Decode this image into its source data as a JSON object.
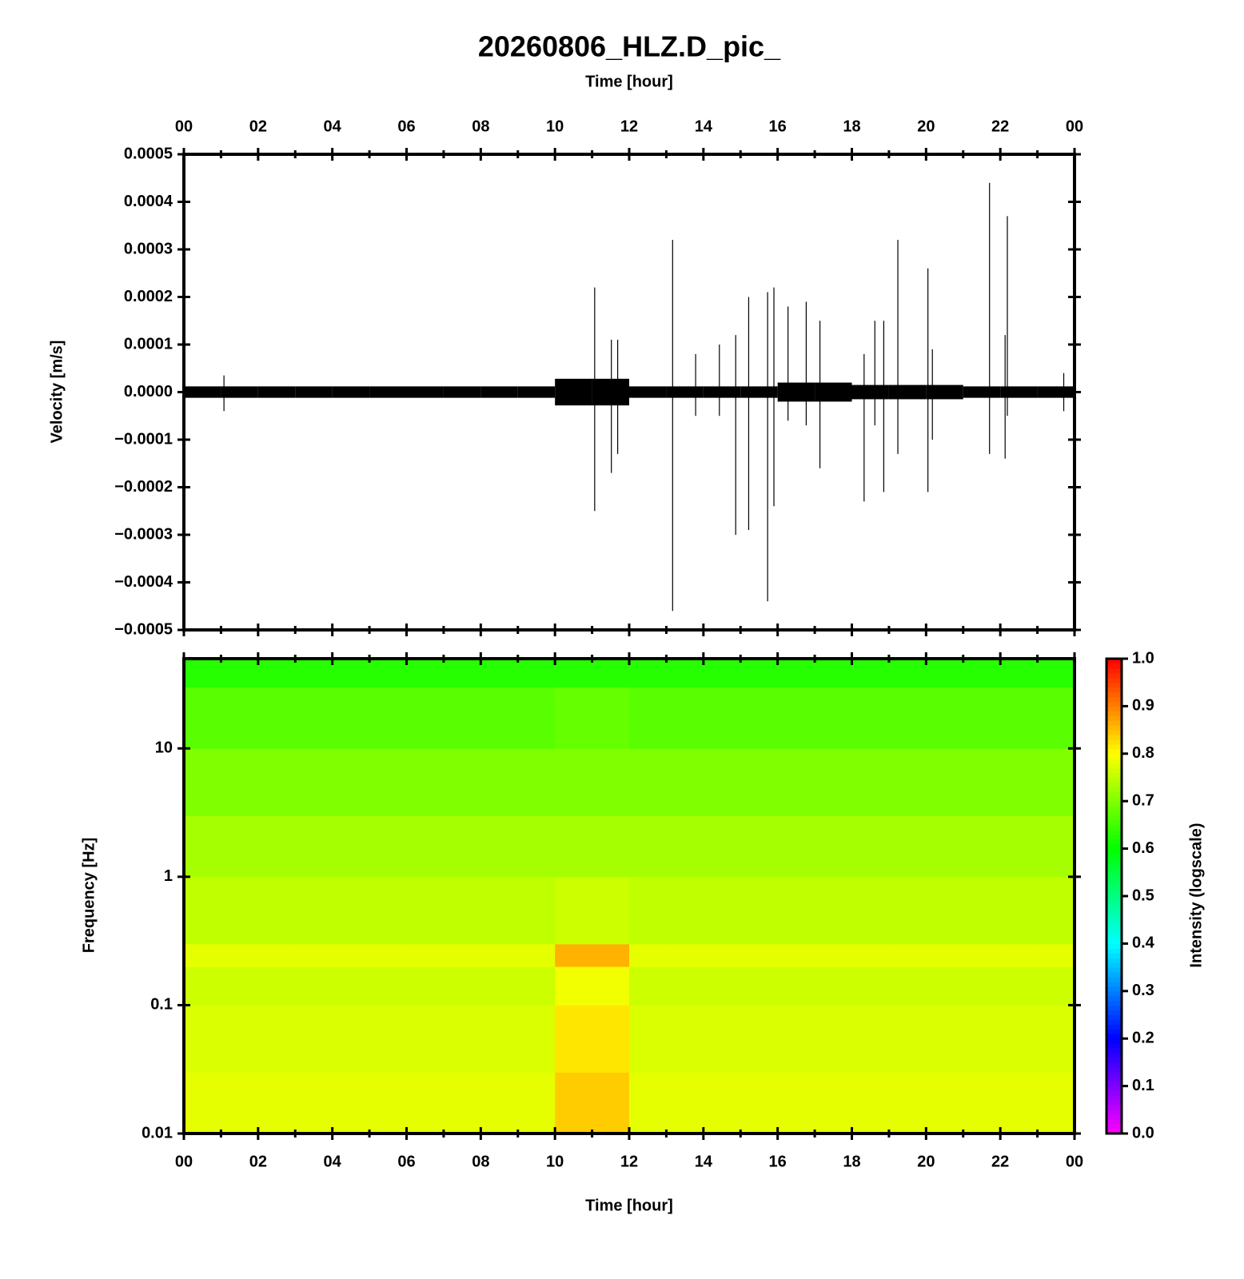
{
  "chart_data": [
    {
      "type": "spike",
      "title": "20260806_HLZ.D_pic_",
      "xlabel": "Time [hour]",
      "ylabel": "Velocity [m/s]",
      "xlim": [
        0,
        24
      ],
      "xticks": [
        {
          "value": 0,
          "label": "00"
        },
        {
          "value": 2,
          "label": "02"
        },
        {
          "value": 4,
          "label": "04"
        },
        {
          "value": 6,
          "label": "06"
        },
        {
          "value": 8,
          "label": "08"
        },
        10,
        12,
        14,
        16,
        18,
        20,
        22,
        {
          "value": 24,
          "label": "00"
        }
      ],
      "xminorticks": [
        1,
        3,
        5,
        7,
        9,
        11,
        13,
        15,
        17,
        19,
        21,
        23
      ],
      "ylim": [
        -0.0005,
        0.0005
      ],
      "yticks": [
        0.0005,
        0.0004,
        0.0003,
        0.0002,
        0.0001,
        {
          "value": 0,
          "label": "0.0000"
        },
        {
          "value": -0.0001,
          "label": "−0.0001"
        },
        {
          "value": -0.0002,
          "label": "−0.0002"
        },
        {
          "value": -0.0003,
          "label": "−0.0003"
        },
        {
          "value": -0.0004,
          "label": "−0.0004"
        },
        {
          "value": -0.0005,
          "label": "−0.0005"
        }
      ],
      "color": "#000000",
      "x": [
        1.08,
        11.07,
        11.52,
        11.69,
        13.17,
        13.79,
        14.43,
        14.87,
        15.22,
        15.73,
        15.9,
        16.28,
        16.77,
        17.14,
        18.33,
        18.62,
        18.86,
        19.24,
        20.05,
        20.17,
        21.71,
        22.13,
        22.19,
        23.71
      ],
      "highs": [
        3.5e-05,
        0.00022,
        0.00011,
        0.00011,
        0.00032,
        8e-05,
        0.0001,
        0.00012,
        0.0002,
        0.00021,
        0.00022,
        0.00018,
        0.00019,
        0.00015,
        8e-05,
        0.00015,
        0.00015,
        0.00032,
        0.00026,
        9e-05,
        0.00044,
        0.00012,
        0.00037,
        4e-05
      ],
      "lows": [
        -4e-05,
        -0.00025,
        -0.00017,
        -0.00013,
        -0.00046,
        -5e-05,
        -5e-05,
        -0.0003,
        -0.00029,
        -0.00044,
        -0.00024,
        -6e-05,
        -7e-05,
        -0.00016,
        -0.00023,
        -7e-05,
        -0.00021,
        -0.00013,
        -0.00021,
        -0.0001,
        -0.00013,
        -0.00014,
        -5e-05,
        -4e-05
      ],
      "band_edges": [
        0,
        1,
        2,
        3,
        4,
        5,
        6,
        7,
        8,
        9,
        10,
        11,
        12,
        13,
        14,
        15,
        16,
        17,
        18,
        19,
        20,
        21,
        22,
        23,
        24
      ],
      "band": [
        1.2e-05,
        1.2e-05,
        1.2e-05,
        1.2e-05,
        1.2e-05,
        1.2e-05,
        1.2e-05,
        1.2e-05,
        1.2e-05,
        1.2e-05,
        2.8e-05,
        2.8e-05,
        1.2e-05,
        1.2e-05,
        1.2e-05,
        1.2e-05,
        2e-05,
        2e-05,
        1.5e-05,
        1.5e-05,
        1.5e-05,
        1.2e-05,
        1.2e-05,
        1.2e-05
      ]
    },
    {
      "type": "heatmap",
      "xlabel": "Time [hour]",
      "ylabel": "Frequency [Hz]",
      "colorbar_label": "Intensity (logscale)",
      "xlim": [
        0,
        24
      ],
      "xticks": [
        {
          "value": 0,
          "label": "00"
        },
        {
          "value": 2,
          "label": "02"
        },
        {
          "value": 4,
          "label": "04"
        },
        {
          "value": 6,
          "label": "06"
        },
        {
          "value": 8,
          "label": "08"
        },
        10,
        12,
        14,
        16,
        18,
        20,
        22,
        {
          "value": 24,
          "label": "00"
        }
      ],
      "xminorticks": [
        1,
        3,
        5,
        7,
        9,
        11,
        13,
        15,
        17,
        19,
        21,
        23
      ],
      "ylim": [
        0.01,
        50
      ],
      "ylog": true,
      "yticks": [
        0.01,
        0.1,
        1,
        10
      ],
      "clim": [
        0,
        1
      ],
      "cticks": [
        {
          "value": 0,
          "label": "0.0"
        },
        0.1,
        0.2,
        0.3,
        0.4,
        0.5,
        0.6,
        0.7,
        0.8,
        0.9,
        {
          "value": 1,
          "label": "1.0"
        }
      ],
      "x_edges": [
        0,
        1,
        2,
        3,
        4,
        5,
        6,
        7,
        8,
        9,
        10,
        11,
        12,
        13,
        14,
        15,
        16,
        17,
        18,
        19,
        20,
        21,
        22,
        23,
        24
      ],
      "y_edges": [
        0.01,
        0.03,
        0.1,
        0.2,
        0.3,
        1,
        3,
        10,
        30,
        50
      ],
      "z": [
        [
          0.78,
          0.78,
          0.78,
          0.78,
          0.78,
          0.78,
          0.78,
          0.78,
          0.78,
          0.78,
          0.84,
          0.84,
          0.78,
          0.78,
          0.78,
          0.78,
          0.78,
          0.78,
          0.78,
          0.78,
          0.78,
          0.78,
          0.78,
          0.78
        ],
        [
          0.77,
          0.77,
          0.77,
          0.77,
          0.77,
          0.77,
          0.77,
          0.77,
          0.77,
          0.77,
          0.82,
          0.82,
          0.77,
          0.77,
          0.77,
          0.77,
          0.77,
          0.77,
          0.77,
          0.77,
          0.77,
          0.77,
          0.77,
          0.77
        ],
        [
          0.76,
          0.76,
          0.76,
          0.76,
          0.76,
          0.76,
          0.76,
          0.76,
          0.76,
          0.76,
          0.79,
          0.79,
          0.76,
          0.76,
          0.76,
          0.76,
          0.76,
          0.76,
          0.76,
          0.76,
          0.76,
          0.76,
          0.76,
          0.76
        ],
        [
          0.78,
          0.78,
          0.78,
          0.78,
          0.78,
          0.78,
          0.78,
          0.78,
          0.78,
          0.78,
          0.86,
          0.86,
          0.78,
          0.78,
          0.78,
          0.78,
          0.78,
          0.78,
          0.78,
          0.78,
          0.78,
          0.78,
          0.78,
          0.78
        ],
        [
          0.75,
          0.75,
          0.75,
          0.75,
          0.75,
          0.75,
          0.75,
          0.75,
          0.75,
          0.75,
          0.76,
          0.76,
          0.75,
          0.75,
          0.75,
          0.75,
          0.75,
          0.75,
          0.75,
          0.75,
          0.75,
          0.75,
          0.75,
          0.75
        ],
        [
          0.73,
          0.73,
          0.73,
          0.73,
          0.73,
          0.73,
          0.73,
          0.73,
          0.73,
          0.73,
          0.73,
          0.73,
          0.73,
          0.73,
          0.73,
          0.73,
          0.73,
          0.73,
          0.73,
          0.73,
          0.73,
          0.73,
          0.73,
          0.73
        ],
        [
          0.7,
          0.7,
          0.7,
          0.7,
          0.7,
          0.7,
          0.7,
          0.7,
          0.7,
          0.7,
          0.7,
          0.7,
          0.7,
          0.7,
          0.7,
          0.7,
          0.7,
          0.7,
          0.7,
          0.7,
          0.7,
          0.7,
          0.7,
          0.7
        ],
        [
          0.67,
          0.67,
          0.67,
          0.67,
          0.67,
          0.67,
          0.67,
          0.67,
          0.67,
          0.67,
          0.68,
          0.68,
          0.67,
          0.67,
          0.67,
          0.67,
          0.67,
          0.67,
          0.67,
          0.67,
          0.67,
          0.67,
          0.67,
          0.67
        ],
        [
          0.63,
          0.63,
          0.63,
          0.63,
          0.63,
          0.63,
          0.63,
          0.63,
          0.63,
          0.63,
          0.63,
          0.63,
          0.63,
          0.63,
          0.63,
          0.63,
          0.63,
          0.63,
          0.63,
          0.63,
          0.63,
          0.63,
          0.63,
          0.63
        ]
      ]
    }
  ]
}
